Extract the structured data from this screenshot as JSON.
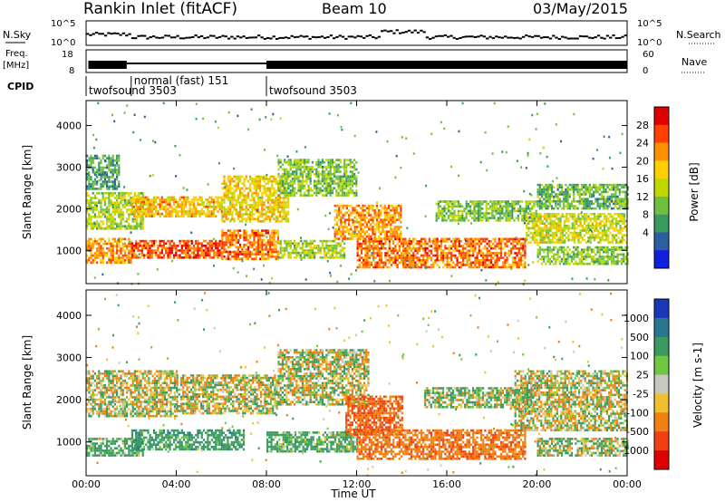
{
  "header": {
    "station": "Rankin Inlet (fitACF)",
    "beam": "Beam 10",
    "date": "03/May/2015"
  },
  "status_rows": {
    "nsky_label": "N.Sky",
    "nsearch_label": "N.Search",
    "freq_label_1": "Freq.",
    "freq_label_2": "[MHz]",
    "nave_label": "Nave",
    "cpid_label": "CPID",
    "nsky_ticks": [
      "10^5",
      "10^0"
    ],
    "nsearch_ticks": [
      "10^5",
      "10^0"
    ],
    "freq_ticks": [
      "18",
      "8"
    ],
    "nave_ticks": [
      "60",
      "0"
    ]
  },
  "cpid_segments": [
    {
      "start_hour": 0.0,
      "label": "twofsound 3503"
    },
    {
      "start_hour": 2.0,
      "label": "normal (fast) 151"
    },
    {
      "start_hour": 8.0,
      "label": "twofsound 3503"
    }
  ],
  "x_axis": {
    "label": "Time UT",
    "ticks": [
      "00:00",
      "04:00",
      "08:00",
      "12:00",
      "16:00",
      "20:00",
      "00:00"
    ],
    "range_hours": [
      0,
      24
    ]
  },
  "power_panel": {
    "ylabel": "Slant Range [km]",
    "yticks": [
      "1000",
      "2000",
      "3000",
      "4000"
    ],
    "ylim_km": [
      200,
      4600
    ],
    "colorbar_label": "Power [dB]",
    "colorbar_ticks": [
      "28",
      "24",
      "20",
      "16",
      "12",
      "8",
      "4"
    ],
    "colorbar_colors": [
      "#e00000",
      "#ff4000",
      "#ff9000",
      "#ffd000",
      "#c0d800",
      "#70c040",
      "#3a9a60",
      "#2a60a0",
      "#1020e0"
    ]
  },
  "velocity_panel": {
    "ylabel": "Slant Range [km]",
    "yticks": [
      "1000",
      "2000",
      "3000",
      "4000"
    ],
    "ylim_km": [
      200,
      4600
    ],
    "colorbar_label": "Velocity [m s-1]",
    "colorbar_ticks": [
      "1000",
      "500",
      "100",
      "25",
      "-25",
      "-100",
      "-500",
      "-1000"
    ],
    "colorbar_colors": [
      "#1838b8",
      "#2a7890",
      "#3a9a60",
      "#70c840",
      "#c8c8c0",
      "#f0c030",
      "#f08010",
      "#f04010",
      "#e00000"
    ]
  },
  "chart_data": {
    "type": "heatmap",
    "x_unit": "hours UT",
    "y_unit": "km",
    "power_bands": [
      {
        "t0": 0.0,
        "t1": 2.0,
        "r0": 700,
        "r1": 1300,
        "value_db": 22
      },
      {
        "t0": 0.0,
        "t1": 2.5,
        "r0": 1500,
        "r1": 2400,
        "value_db": 14
      },
      {
        "t0": 0.0,
        "t1": 1.5,
        "r0": 2500,
        "r1": 3300,
        "value_db": 8
      },
      {
        "t0": 2.0,
        "t1": 6.0,
        "r0": 800,
        "r1": 1250,
        "value_db": 26
      },
      {
        "t0": 2.0,
        "t1": 6.0,
        "r0": 1800,
        "r1": 2300,
        "value_db": 20
      },
      {
        "t0": 6.0,
        "t1": 8.5,
        "r0": 800,
        "r1": 1500,
        "value_db": 24
      },
      {
        "t0": 6.0,
        "t1": 9.0,
        "r0": 1700,
        "r1": 2800,
        "value_db": 18
      },
      {
        "t0": 8.5,
        "t1": 11.5,
        "r0": 800,
        "r1": 1250,
        "value_db": 14
      },
      {
        "t0": 8.5,
        "t1": 12.0,
        "r0": 2300,
        "r1": 3200,
        "value_db": 12
      },
      {
        "t0": 11.0,
        "t1": 14.0,
        "r0": 1300,
        "r1": 2100,
        "value_db": 22
      },
      {
        "t0": 12.0,
        "t1": 19.5,
        "r0": 600,
        "r1": 1300,
        "value_db": 24
      },
      {
        "t0": 15.5,
        "t1": 20.0,
        "r0": 1700,
        "r1": 2200,
        "value_db": 12
      },
      {
        "t0": 19.5,
        "t1": 24.0,
        "r0": 1200,
        "r1": 1900,
        "value_db": 16
      },
      {
        "t0": 20.0,
        "t1": 24.0,
        "r0": 700,
        "r1": 1100,
        "value_db": 12
      },
      {
        "t0": 20.0,
        "t1": 24.0,
        "r0": 2000,
        "r1": 2600,
        "value_db": 10
      }
    ],
    "velocity_bands": [
      {
        "t0": 0.0,
        "t1": 4.0,
        "r0": 1600,
        "r1": 2700,
        "value_ms": 0
      },
      {
        "t0": 0.0,
        "t1": 2.5,
        "r0": 700,
        "r1": 1100,
        "value_ms": 200
      },
      {
        "t0": 2.0,
        "t1": 7.0,
        "r0": 800,
        "r1": 1300,
        "value_ms": 300
      },
      {
        "t0": 4.0,
        "t1": 8.5,
        "r0": 1700,
        "r1": 2600,
        "value_ms": 0
      },
      {
        "t0": 8.0,
        "t1": 12.0,
        "r0": 800,
        "r1": 1250,
        "value_ms": 200
      },
      {
        "t0": 8.5,
        "t1": 12.5,
        "r0": 1900,
        "r1": 3200,
        "value_ms": 0
      },
      {
        "t0": 11.5,
        "t1": 14.0,
        "r0": 1200,
        "r1": 2100,
        "value_ms": -500
      },
      {
        "t0": 12.0,
        "t1": 19.5,
        "r0": 600,
        "r1": 1300,
        "value_ms": -400
      },
      {
        "t0": 15.0,
        "t1": 20.0,
        "r0": 1800,
        "r1": 2300,
        "value_ms": 100
      },
      {
        "t0": 19.0,
        "t1": 24.0,
        "r0": 1300,
        "r1": 2700,
        "value_ms": 0
      },
      {
        "t0": 20.0,
        "t1": 24.0,
        "r0": 700,
        "r1": 1100,
        "value_ms": 80
      }
    ]
  }
}
